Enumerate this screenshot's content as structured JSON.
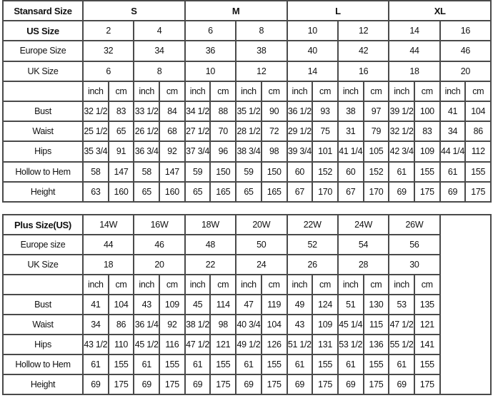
{
  "standard": {
    "header_label": "Stansard Size",
    "groups": [
      "S",
      "M",
      "L",
      "XL"
    ],
    "us_label": "US Size",
    "us": [
      "2",
      "4",
      "6",
      "8",
      "10",
      "12",
      "14",
      "16"
    ],
    "europe_label": "Europe Size",
    "europe": [
      "32",
      "34",
      "36",
      "38",
      "40",
      "42",
      "44",
      "46"
    ],
    "uk_label": "UK Size",
    "uk": [
      "6",
      "8",
      "10",
      "12",
      "14",
      "16",
      "18",
      "20"
    ],
    "units": [
      "inch",
      "cm"
    ],
    "measurements": [
      {
        "label": "Bust",
        "values": [
          "32 1/2",
          "83",
          "33 1/2",
          "84",
          "34 1/2",
          "88",
          "35 1/2",
          "90",
          "36 1/2",
          "93",
          "38",
          "97",
          "39 1/2",
          "100",
          "41",
          "104"
        ]
      },
      {
        "label": "Waist",
        "values": [
          "25 1/2",
          "65",
          "26 1/2",
          "68",
          "27 1/2",
          "70",
          "28 1/2",
          "72",
          "29 1/2",
          "75",
          "31",
          "79",
          "32 1/2",
          "83",
          "34",
          "86"
        ]
      },
      {
        "label": "Hips",
        "values": [
          "35 3/4",
          "91",
          "36 3/4",
          "92",
          "37 3/4",
          "96",
          "38 3/4",
          "98",
          "39 3/4",
          "101",
          "41 1/4",
          "105",
          "42 3/4",
          "109",
          "44 1/4",
          "112"
        ]
      },
      {
        "label": "Hollow to Hem",
        "values": [
          "58",
          "147",
          "58",
          "147",
          "59",
          "150",
          "59",
          "150",
          "60",
          "152",
          "60",
          "152",
          "61",
          "155",
          "61",
          "155"
        ]
      },
      {
        "label": "Height",
        "values": [
          "63",
          "160",
          "65",
          "160",
          "65",
          "165",
          "65",
          "165",
          "67",
          "170",
          "67",
          "170",
          "69",
          "175",
          "69",
          "175"
        ]
      }
    ]
  },
  "plus": {
    "header_label": "Plus Size(US)",
    "us": [
      "14W",
      "16W",
      "18W",
      "20W",
      "22W",
      "24W",
      "26W"
    ],
    "europe_label": "Europe size",
    "europe": [
      "44",
      "46",
      "48",
      "50",
      "52",
      "54",
      "56"
    ],
    "uk_label": "UK Size",
    "uk": [
      "18",
      "20",
      "22",
      "24",
      "26",
      "28",
      "30"
    ],
    "units": [
      "inch",
      "cm"
    ],
    "measurements": [
      {
        "label": "Bust",
        "values": [
          "41",
          "104",
          "43",
          "109",
          "45",
          "114",
          "47",
          "119",
          "49",
          "124",
          "51",
          "130",
          "53",
          "135"
        ]
      },
      {
        "label": "Waist",
        "values": [
          "34",
          "86",
          "36 1/4",
          "92",
          "38 1/2",
          "98",
          "40 3/4",
          "104",
          "43",
          "109",
          "45 1/4",
          "115",
          "47 1/2",
          "121"
        ]
      },
      {
        "label": "Hips",
        "values": [
          "43 1/2",
          "110",
          "45 1/2",
          "116",
          "47 1/2",
          "121",
          "49 1/2",
          "126",
          "51 1/2",
          "131",
          "53 1/2",
          "136",
          "55 1/2",
          "141"
        ]
      },
      {
        "label": "Hollow to Hem",
        "values": [
          "61",
          "155",
          "61",
          "155",
          "61",
          "155",
          "61",
          "155",
          "61",
          "155",
          "61",
          "155",
          "61",
          "155"
        ]
      },
      {
        "label": "Height",
        "values": [
          "69",
          "175",
          "69",
          "175",
          "69",
          "175",
          "69",
          "175",
          "69",
          "175",
          "69",
          "175",
          "69",
          "175"
        ]
      }
    ]
  }
}
